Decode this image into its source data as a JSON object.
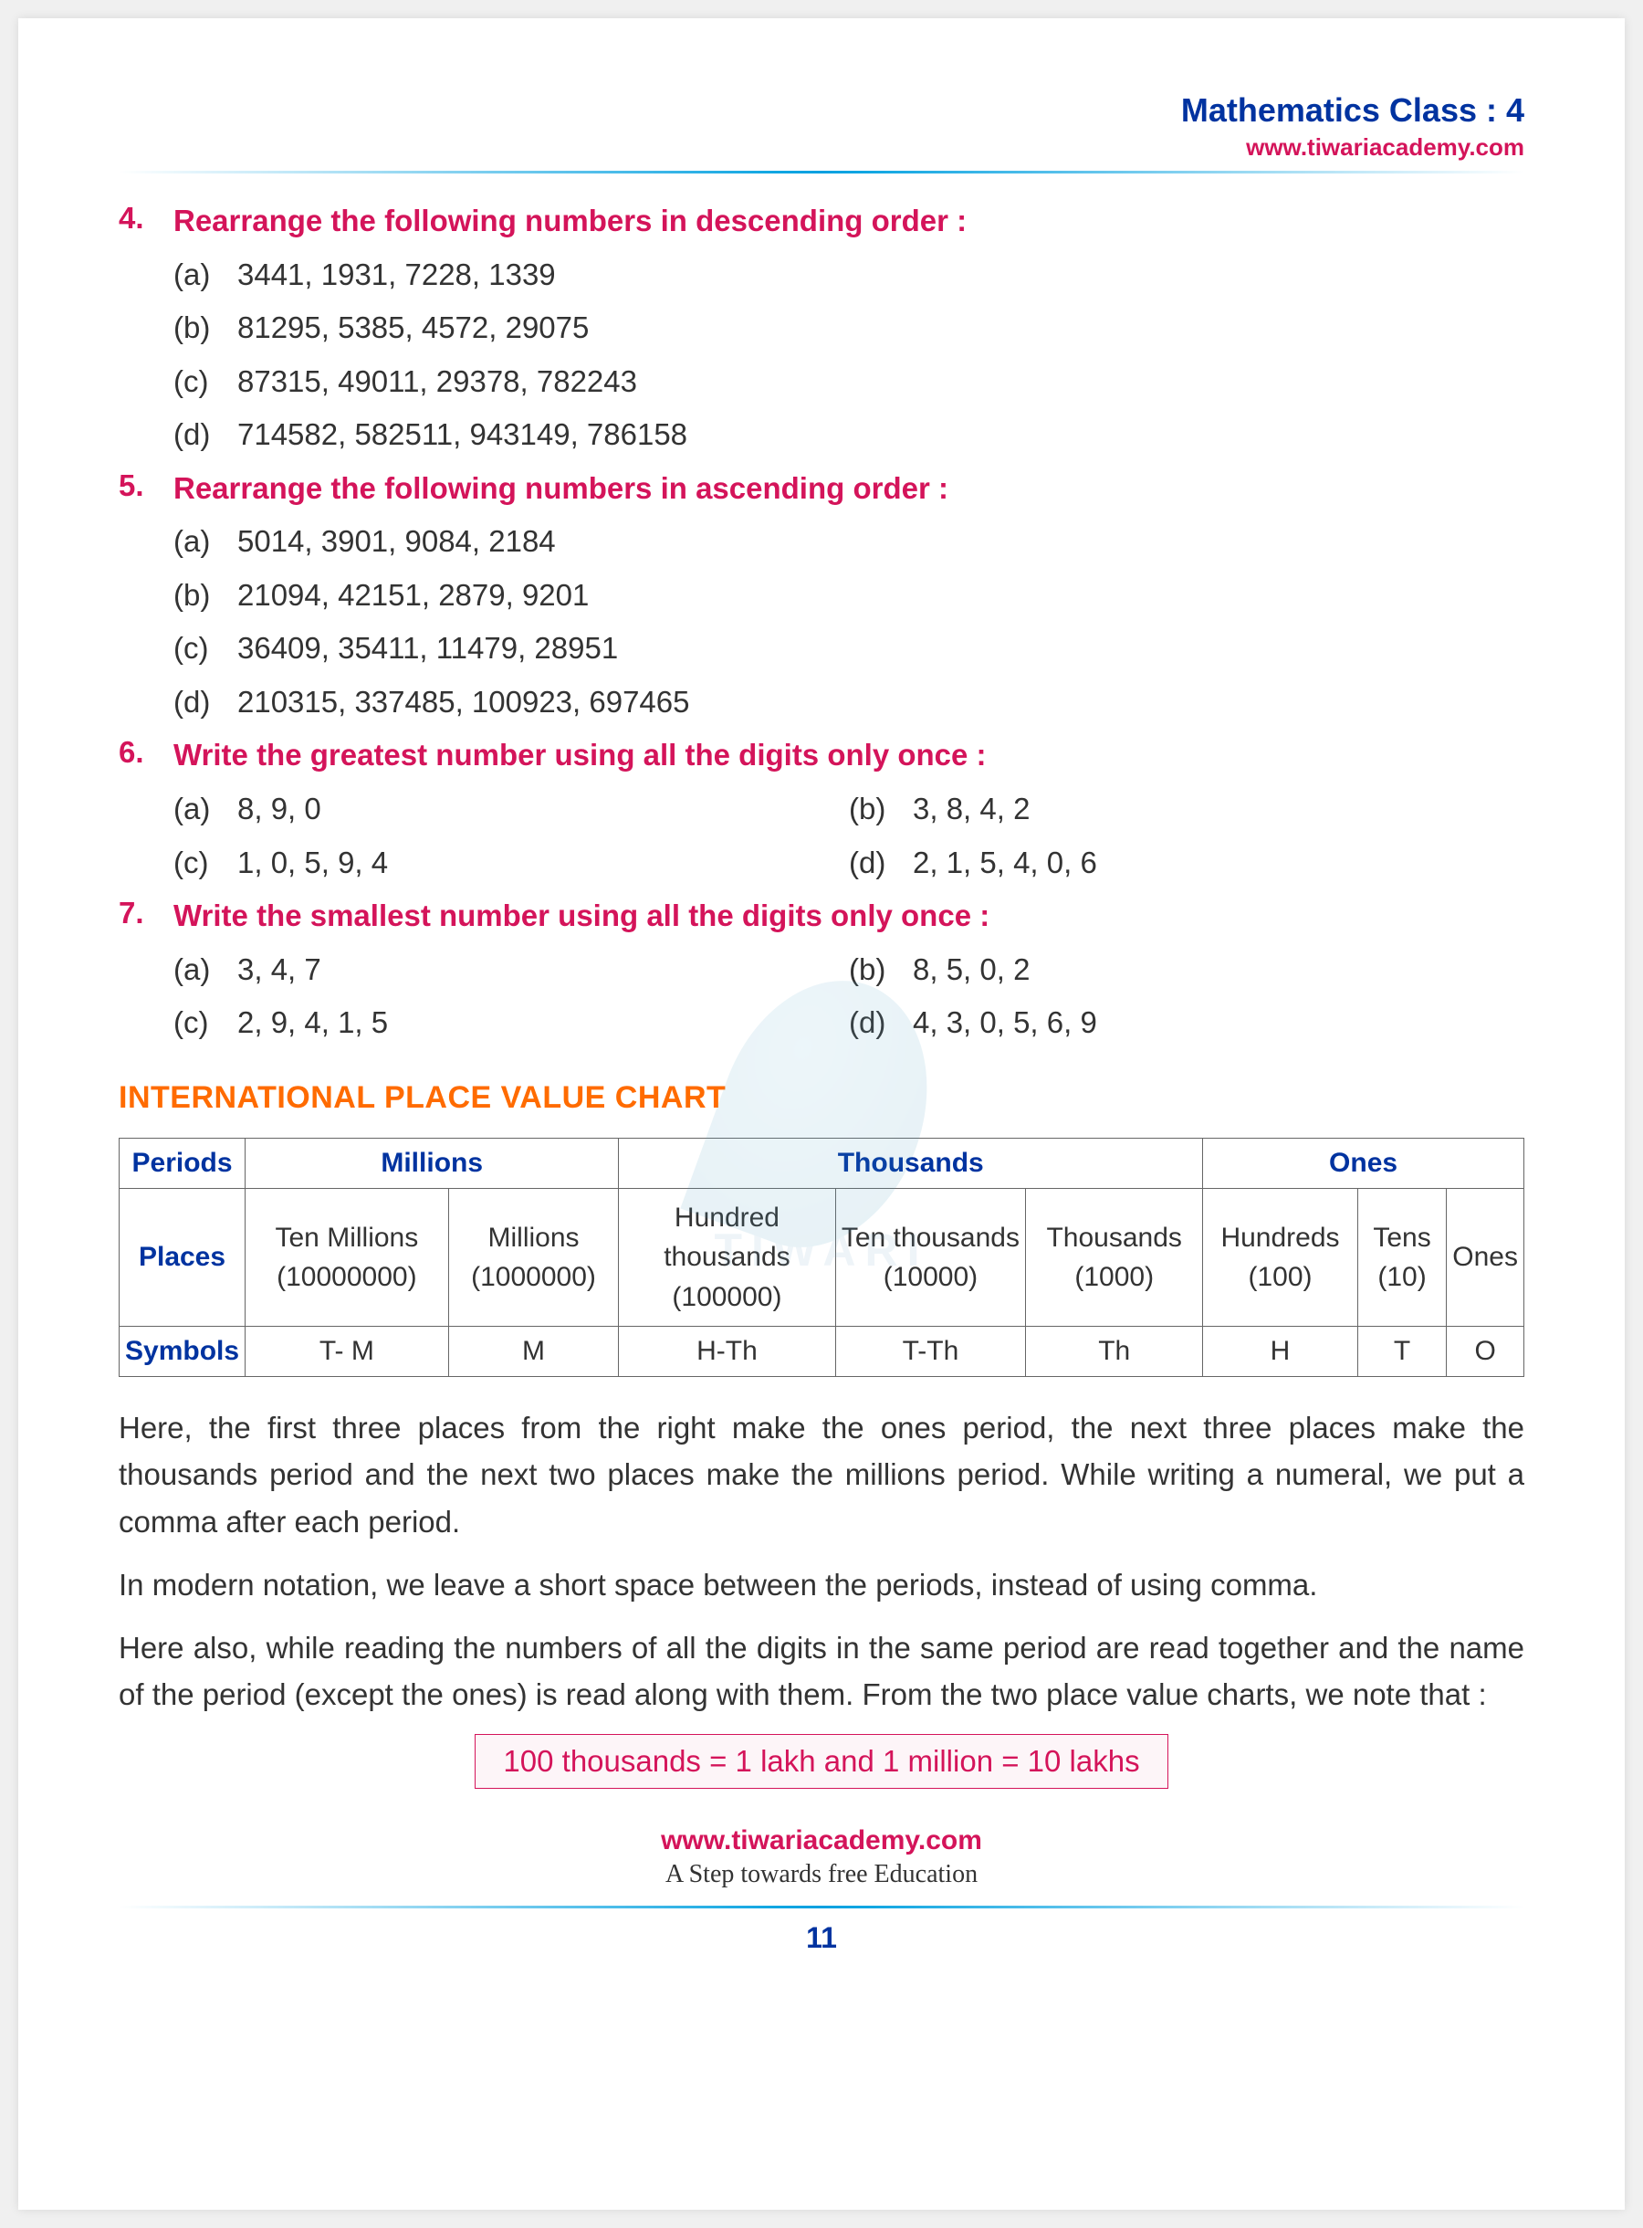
{
  "header": {
    "title": "Mathematics Class : 4",
    "url": "www.tiwariacademy.com",
    "title_color": "#0033a0",
    "url_color": "#d4145a"
  },
  "questions": [
    {
      "num": "4.",
      "title": "Rearrange the following numbers in descending order :",
      "layout": "list",
      "items": [
        {
          "label": "(a)",
          "text": "3441, 1931, 7228, 1339"
        },
        {
          "label": "(b)",
          "text": "81295, 5385, 4572, 29075"
        },
        {
          "label": "(c)",
          "text": "87315, 49011, 29378, 782243"
        },
        {
          "label": "(d)",
          "text": "714582, 582511, 943149, 786158"
        }
      ]
    },
    {
      "num": "5.",
      "title": "Rearrange the following numbers in ascending order :",
      "layout": "list",
      "items": [
        {
          "label": "(a)",
          "text": "5014, 3901, 9084, 2184"
        },
        {
          "label": "(b)",
          "text": "21094, 42151, 2879, 9201"
        },
        {
          "label": "(c)",
          "text": "36409, 35411, 11479, 28951"
        },
        {
          "label": "(d)",
          "text": "210315, 337485, 100923, 697465"
        }
      ]
    },
    {
      "num": "6.",
      "title": "Write the greatest number using all the digits only once :",
      "layout": "grid",
      "rows": [
        [
          {
            "label": "(a)",
            "text": "8, 9, 0"
          },
          {
            "label": "(b)",
            "text": "3, 8, 4, 2"
          }
        ],
        [
          {
            "label": "(c)",
            "text": "1, 0, 5, 9, 4"
          },
          {
            "label": "(d)",
            "text": "2, 1, 5, 4, 0, 6"
          }
        ]
      ]
    },
    {
      "num": "7.",
      "title": "Write the smallest number using all the digits only once :",
      "layout": "grid",
      "rows": [
        [
          {
            "label": "(a)",
            "text": "3, 4, 7"
          },
          {
            "label": "(b)",
            "text": "8, 5, 0, 2"
          }
        ],
        [
          {
            "label": "(c)",
            "text": "2, 9, 4, 1, 5"
          },
          {
            "label": "(d)",
            "text": "4, 3, 0, 5, 6, 9"
          }
        ]
      ]
    }
  ],
  "section_title": "INTERNATIONAL PLACE VALUE CHART",
  "section_title_color": "#ff6b00",
  "pv_table": {
    "row_labels": [
      "Periods",
      "Places",
      "Symbols"
    ],
    "periods": [
      {
        "name": "Millions",
        "span": 2
      },
      {
        "name": "Thousands",
        "span": 3
      },
      {
        "name": "Ones",
        "span": 3
      }
    ],
    "places": [
      "Ten Millions (10000000)",
      "Millions (1000000)",
      "Hundred thousands (100000)",
      "Ten thousands (10000)",
      "Thousands (1000)",
      "Hundreds (100)",
      "Tens (10)",
      "Ones"
    ],
    "symbols": [
      "T- M",
      "M",
      "H-Th",
      "T-Th",
      "Th",
      "H",
      "T",
      "O"
    ]
  },
  "body_paragraphs": [
    "Here, the first three places from the right make the ones period, the next three places make the thousands period and the next two places make the millions period. While writing a numeral, we put a comma after each period.",
    "In modern notation, we leave a short space between the periods, instead of using comma.",
    "Here also, while reading the numbers of all the digits in the same period are read together and the name of the period (except the ones) is read along with them. From the two place value charts, we note that :"
  ],
  "note_box": "100 thousands = 1 lakh and 1 million = 10 lakhs",
  "footer": {
    "url": "www.tiwariacademy.com",
    "tagline": "A Step towards free Education",
    "page_num": "11"
  },
  "watermark_text": "TIWARI"
}
